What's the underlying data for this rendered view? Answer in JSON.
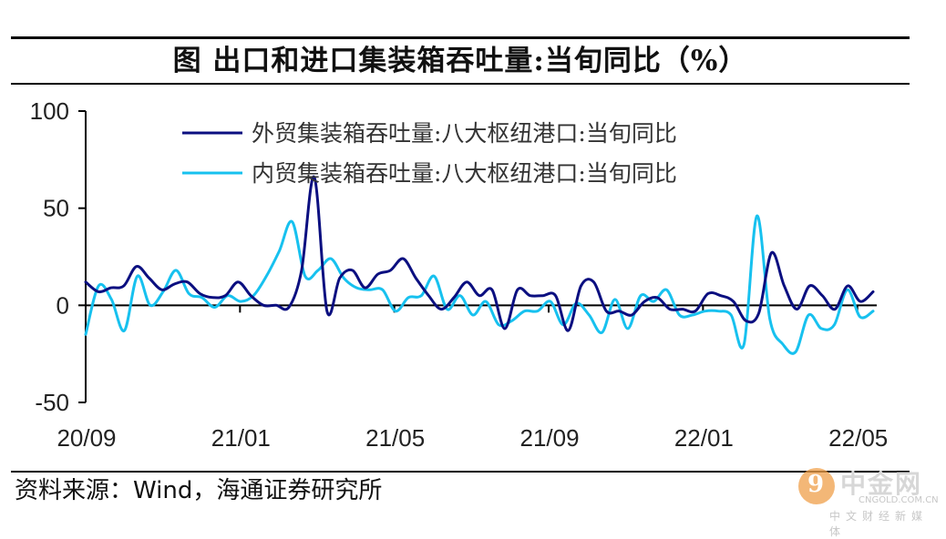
{
  "title": "图 出口和进口集装箱吞吐量:当旬同比（%）",
  "source": "资料来源：Wind，海通证券研究所",
  "watermark": {
    "brand": "中金网",
    "domain": "CNGOLD.COM.CN",
    "tagline": "中文财经新媒体",
    "logo_glyph": "9"
  },
  "colors": {
    "series_1": "#0b0f80",
    "series_2": "#17c1ef"
  },
  "chart_data": {
    "type": "line",
    "title": "图 出口和进口集装箱吞吐量:当旬同比（%）",
    "xlabel": "",
    "ylabel": "",
    "ylim": [
      -50,
      100
    ],
    "yticks": [
      -50,
      0,
      50,
      100
    ],
    "xtick_labels": [
      "20/09",
      "21/01",
      "21/05",
      "21/09",
      "22/01",
      "22/05"
    ],
    "x_range": [
      "2020-09",
      "2022-05-下旬"
    ],
    "grid": false,
    "legend": "top-center",
    "series": [
      {
        "name": "外贸集装箱吞吐量:八大枢纽港口:当旬同比",
        "color": "#0b0f80",
        "values": [
          12,
          7,
          9,
          10,
          20,
          14,
          8,
          11,
          12,
          6,
          4,
          5,
          12,
          5,
          0,
          0,
          -1,
          18,
          66,
          -3,
          14,
          18,
          9,
          16,
          18,
          24,
          14,
          5,
          -2,
          4,
          12,
          5,
          8,
          -12,
          8,
          5,
          5,
          5,
          -13,
          10,
          12,
          -3,
          -3,
          -5,
          2,
          4,
          -2,
          -2,
          -3,
          6,
          5,
          2,
          -8,
          -4,
          27,
          10,
          -2,
          10,
          5,
          -2,
          10,
          2,
          7
        ]
      },
      {
        "name": "内贸集装箱吞吐量:八大枢纽港口:当旬同比",
        "color": "#17c1ef",
        "values": [
          -15,
          10,
          3,
          -13,
          15,
          0,
          7,
          18,
          6,
          4,
          -1,
          5,
          2,
          5,
          15,
          28,
          43,
          15,
          18,
          24,
          14,
          9,
          8,
          8,
          -3,
          4,
          5,
          15,
          -2,
          5,
          -5,
          2,
          -10,
          -8,
          -3,
          -3,
          2,
          -10,
          1,
          -5,
          -14,
          3,
          -12,
          5,
          2,
          8,
          -5,
          -5,
          -3,
          -3,
          -5,
          -20,
          46,
          -7,
          -20,
          -24,
          -5,
          -12,
          -10,
          8,
          -6,
          -3
        ]
      }
    ]
  }
}
